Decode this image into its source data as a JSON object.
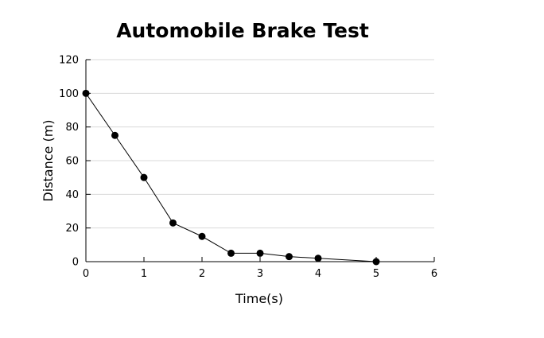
{
  "chart_data": {
    "type": "line",
    "title": "Automobile Brake Test",
    "xlabel": "Time(s)",
    "ylabel": "Distance (m)",
    "xlim": [
      0,
      6
    ],
    "ylim": [
      0,
      120
    ],
    "xticks": [
      0,
      1,
      2,
      3,
      4,
      5,
      6
    ],
    "yticks": [
      0,
      20,
      40,
      60,
      80,
      100,
      120
    ],
    "grid": "horizontal",
    "series": [
      {
        "x": [
          0,
          0.5,
          1,
          1.5,
          2,
          2.5,
          3,
          3.5,
          4,
          5
        ],
        "y": [
          100,
          75,
          50,
          23,
          15,
          5,
          5,
          3,
          2,
          0
        ]
      }
    ],
    "colors": {
      "line": "#000000",
      "marker": "#000000",
      "grid": "#d9d9d9",
      "axis": "#000000"
    }
  }
}
